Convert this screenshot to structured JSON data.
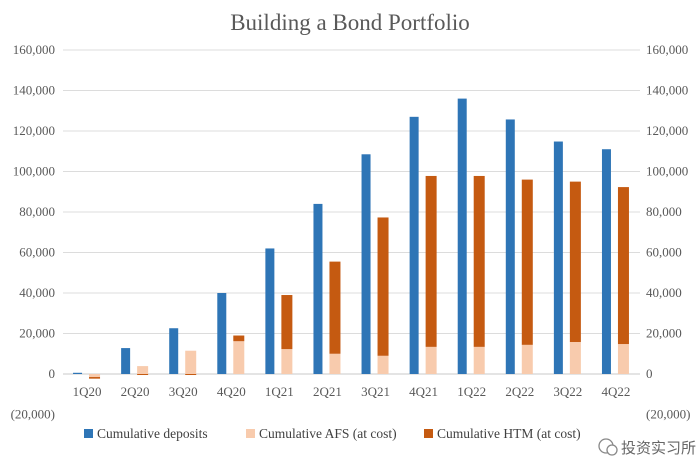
{
  "chart_data": {
    "type": "bar",
    "title": "Building a Bond Portfolio",
    "xlabel": "",
    "ylabel": "",
    "ylim": [
      -20000,
      160000
    ],
    "yticks": [
      "(20,000)",
      "0",
      "20,000",
      "40,000",
      "60,000",
      "80,000",
      "100,000",
      "120,000",
      "140,000",
      "160,000"
    ],
    "ytick_values": [
      -20000,
      0,
      20000,
      40000,
      60000,
      80000,
      100000,
      120000,
      140000,
      160000
    ],
    "grid": true,
    "legend_position": "bottom",
    "categories": [
      "1Q20",
      "2Q20",
      "3Q20",
      "4Q20",
      "1Q21",
      "2Q21",
      "3Q21",
      "4Q21",
      "1Q22",
      "2Q22",
      "3Q22",
      "4Q22"
    ],
    "series": [
      {
        "name": "Cumulative deposits",
        "color": "#2E75B6",
        "stack": "a",
        "values": [
          600,
          12800,
          22600,
          40000,
          62000,
          84000,
          108500,
          127000,
          136000,
          125700,
          114800,
          111000
        ]
      },
      {
        "name": "Cumulative AFS (at cost)",
        "color": "#F8CBAD",
        "stack": "b",
        "values": [
          -1500,
          3900,
          11500,
          16200,
          12300,
          10000,
          9000,
          13400,
          13400,
          14400,
          15800,
          14800
        ]
      },
      {
        "name": "Cumulative HTM (at cost)",
        "color": "#C55A11",
        "stack": "b",
        "values": [
          -800,
          -500,
          -500,
          2800,
          26700,
          45500,
          68300,
          84400,
          84400,
          81600,
          79200,
          77500
        ]
      }
    ]
  },
  "watermark": "投资实习所"
}
